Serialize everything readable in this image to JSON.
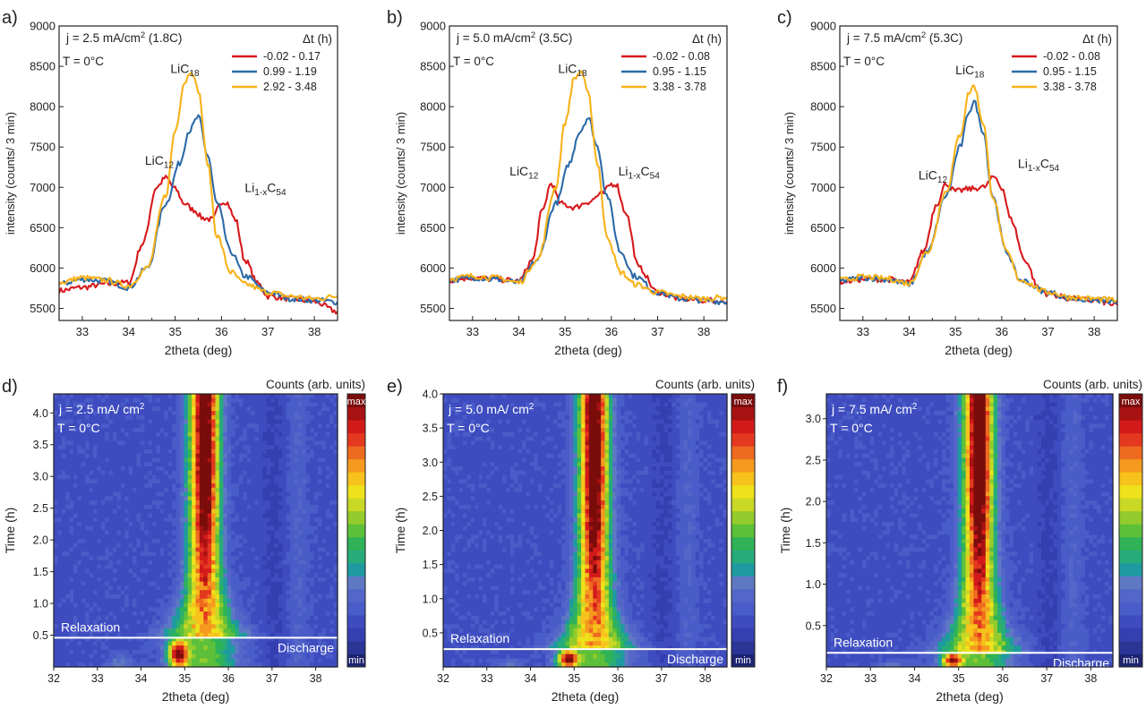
{
  "figure": {
    "panel_letters": [
      "a)",
      "b)",
      "c)",
      "d)",
      "e)",
      "f)"
    ]
  },
  "colors": {
    "red": "#d7191c",
    "blue": "#2c6aa8",
    "orange": "#f7b21a",
    "frame": "#222222",
    "relaxation_line": "#ffffff",
    "heatmap_scale": [
      "#1e2470",
      "#2a3596",
      "#343fb0",
      "#3e4cc0",
      "#4a5cc8",
      "#5566c9",
      "#5e78c4",
      "#1e9aa0",
      "#28ab7a",
      "#2fb356",
      "#5dc03a",
      "#93cc2c",
      "#c8d825",
      "#eee21c",
      "#f7c21c",
      "#f59a1e",
      "#ee6a1f",
      "#e4381f",
      "#d31a1a",
      "#a81212",
      "#7a0c0c"
    ]
  },
  "chart_data": [
    {
      "panel": "a)",
      "type": "line",
      "annotation_lines": [
        "j = 2.5 mA/cm² (1.8C)",
        "T = 0°C"
      ],
      "legend_title": "Δt (h)",
      "legend_position": "top-right",
      "xlabel": "2theta (deg)",
      "ylabel": "intensity (counts/ 3 min)",
      "xlim": [
        32.5,
        38.5
      ],
      "ylim": [
        5350,
        9000
      ],
      "xticks": [
        33,
        34,
        35,
        36,
        37,
        38
      ],
      "yticks": [
        5500,
        6000,
        6500,
        7000,
        7500,
        8000,
        8500,
        9000
      ],
      "peak_labels": [
        {
          "text": "LiC",
          "sub": "12",
          "x": 34.35,
          "y": 7280
        },
        {
          "text": "LiC",
          "sub": "18",
          "x": 34.9,
          "y": 8420
        },
        {
          "text": "Li",
          "sub": "1-x",
          "text2": "C",
          "sub2": "54",
          "x": 36.5,
          "y": 6940
        }
      ],
      "series": [
        {
          "name": "-0.02 - 0.17",
          "color": "red",
          "x": [
            32.5,
            33.0,
            33.5,
            34.0,
            34.3,
            34.6,
            34.8,
            35.0,
            35.2,
            35.4,
            35.6,
            35.8,
            36.0,
            36.1,
            36.3,
            36.5,
            36.8,
            37.0,
            37.5,
            38.0,
            38.5
          ],
          "y": [
            5720,
            5760,
            5800,
            5820,
            6300,
            7000,
            7120,
            6980,
            6800,
            6720,
            6620,
            6600,
            6820,
            6820,
            6600,
            6100,
            5800,
            5650,
            5620,
            5580,
            5460
          ]
        },
        {
          "name": "0.99 - 1.19",
          "color": "blue",
          "x": [
            32.5,
            33.0,
            33.5,
            34.0,
            34.4,
            34.8,
            35.1,
            35.3,
            35.5,
            35.7,
            35.9,
            36.2,
            36.5,
            37.0,
            37.5,
            38.0,
            38.5
          ],
          "y": [
            5800,
            5860,
            5840,
            5760,
            6000,
            6800,
            7300,
            7700,
            7870,
            7400,
            6800,
            6200,
            5900,
            5700,
            5620,
            5600,
            5580
          ]
        },
        {
          "name": "2.92 - 3.48",
          "color": "orange",
          "x": [
            32.5,
            33.0,
            33.5,
            34.0,
            34.4,
            34.8,
            35.0,
            35.2,
            35.35,
            35.5,
            35.7,
            35.9,
            36.2,
            36.5,
            37.0,
            37.5,
            38.0,
            38.5
          ],
          "y": [
            5820,
            5880,
            5850,
            5780,
            6000,
            6900,
            7700,
            8300,
            8450,
            8200,
            7300,
            6400,
            5950,
            5800,
            5700,
            5650,
            5620,
            5650
          ]
        }
      ]
    },
    {
      "panel": "b)",
      "type": "line",
      "annotation_lines": [
        "j = 5.0 mA/cm² (3.5C)",
        "T = 0°C"
      ],
      "legend_title": "Δt (h)",
      "legend_position": "top-right",
      "xlabel": "2theta (deg)",
      "ylabel": "intensity (counts/ 3 min)",
      "xlim": [
        32.5,
        38.5
      ],
      "ylim": [
        5350,
        9000
      ],
      "xticks": [
        33,
        34,
        35,
        36,
        37,
        38
      ],
      "yticks": [
        5500,
        6000,
        6500,
        7000,
        7500,
        8000,
        8500,
        9000
      ],
      "peak_labels": [
        {
          "text": "LiC",
          "sub": "12",
          "x": 33.8,
          "y": 7150
        },
        {
          "text": "LiC",
          "sub": "18",
          "x": 34.85,
          "y": 8420
        },
        {
          "text": "Li",
          "sub": "1-x",
          "text2": "C",
          "sub2": "54",
          "x": 36.15,
          "y": 7150
        }
      ],
      "series": [
        {
          "name": "-0.02 - 0.08",
          "color": "red",
          "x": [
            32.5,
            33.0,
            33.5,
            34.0,
            34.3,
            34.5,
            34.7,
            34.9,
            35.2,
            35.5,
            35.8,
            36.0,
            36.1,
            36.3,
            36.6,
            37.0,
            37.5,
            38.0,
            38.5
          ],
          "y": [
            5850,
            5880,
            5860,
            5840,
            6100,
            6700,
            7050,
            6800,
            6750,
            6820,
            6920,
            7040,
            7040,
            6700,
            6000,
            5700,
            5620,
            5600,
            5580
          ]
        },
        {
          "name": "0.95 - 1.15",
          "color": "blue",
          "x": [
            32.5,
            33.0,
            33.5,
            34.0,
            34.4,
            34.8,
            35.1,
            35.3,
            35.5,
            35.7,
            35.9,
            36.2,
            36.5,
            37.0,
            37.5,
            38.0,
            38.5
          ],
          "y": [
            5850,
            5880,
            5860,
            5820,
            6100,
            6800,
            7300,
            7680,
            7860,
            7500,
            6900,
            6200,
            5900,
            5700,
            5620,
            5600,
            5580
          ]
        },
        {
          "name": "3.38 - 3.78",
          "color": "orange",
          "x": [
            32.5,
            33.0,
            33.5,
            34.0,
            34.4,
            34.8,
            35.0,
            35.2,
            35.35,
            35.5,
            35.7,
            35.9,
            36.2,
            36.5,
            37.0,
            37.5,
            38.0,
            38.5
          ],
          "y": [
            5870,
            5900,
            5880,
            5820,
            6100,
            7000,
            7800,
            8350,
            8440,
            8150,
            7300,
            6400,
            5950,
            5800,
            5700,
            5650,
            5620,
            5640
          ]
        }
      ]
    },
    {
      "panel": "c)",
      "type": "line",
      "annotation_lines": [
        "j = 7.5 mA/cm² (5.3C)",
        "T = 0°C"
      ],
      "legend_title": "Δt (h)",
      "legend_position": "top-right",
      "xlabel": "2theta (deg)",
      "ylabel": "intensity (counts/ 3 min)",
      "xlim": [
        32.5,
        38.5
      ],
      "ylim": [
        5350,
        9000
      ],
      "xticks": [
        33,
        34,
        35,
        36,
        37,
        38
      ],
      "yticks": [
        5500,
        6000,
        6500,
        7000,
        7500,
        8000,
        8500,
        9000
      ],
      "peak_labels": [
        {
          "text": "LiC",
          "sub": "12",
          "x": 34.2,
          "y": 7100
        },
        {
          "text": "LiC",
          "sub": "18",
          "x": 35.0,
          "y": 8400
        },
        {
          "text": "Li",
          "sub": "1-x",
          "text2": "C",
          "sub2": "54",
          "x": 36.35,
          "y": 7240
        }
      ],
      "series": [
        {
          "name": "-0.02 - 0.08",
          "color": "red",
          "x": [
            32.5,
            33.0,
            33.5,
            34.0,
            34.3,
            34.6,
            34.8,
            35.0,
            35.3,
            35.6,
            35.85,
            36.0,
            36.2,
            36.5,
            36.8,
            37.0,
            37.5,
            38.0,
            38.5
          ],
          "y": [
            5830,
            5860,
            5860,
            5820,
            6200,
            6800,
            7050,
            6950,
            6980,
            7000,
            7130,
            7000,
            6600,
            6100,
            5750,
            5680,
            5620,
            5600,
            5540
          ]
        },
        {
          "name": "0.95 - 1.15",
          "color": "blue",
          "x": [
            32.5,
            33.0,
            33.5,
            34.0,
            34.4,
            34.8,
            35.1,
            35.3,
            35.4,
            35.6,
            35.8,
            36.1,
            36.4,
            37.0,
            37.5,
            38.0,
            38.5
          ],
          "y": [
            5840,
            5880,
            5860,
            5800,
            6200,
            6900,
            7500,
            7950,
            8060,
            7700,
            6900,
            6200,
            5850,
            5700,
            5620,
            5600,
            5580
          ]
        },
        {
          "name": "3.38 - 3.78",
          "color": "orange",
          "x": [
            32.5,
            33.0,
            33.5,
            34.0,
            34.4,
            34.8,
            35.1,
            35.3,
            35.4,
            35.6,
            35.8,
            36.1,
            36.4,
            37.0,
            37.5,
            38.0,
            38.5
          ],
          "y": [
            5850,
            5890,
            5870,
            5810,
            6200,
            6950,
            7650,
            8180,
            8260,
            7800,
            6900,
            6200,
            5850,
            5700,
            5640,
            5620,
            5600
          ]
        }
      ]
    },
    {
      "panel": "d)",
      "type": "heatmap",
      "annotation_lines": [
        "j = 2.5 mA/ cm²",
        "T = 0°C"
      ],
      "colorbar_title": "Counts (arb. units)",
      "colorbar_labels": {
        "top": "max",
        "bottom": "min"
      },
      "xlabel": "2theta (deg)",
      "ylabel": "Time (h)",
      "xlim": [
        32,
        38.5
      ],
      "ylim": [
        0,
        4.3
      ],
      "xticks": [
        32,
        33,
        34,
        35,
        36,
        37,
        38
      ],
      "yticks": [
        0.5,
        1.0,
        1.5,
        2.0,
        2.5,
        3.0,
        3.5,
        4.0
      ],
      "ytick_labels": [
        "0.5",
        "1.0",
        "1.5",
        "2.0",
        "2.5",
        "3.0",
        "3.5",
        "4.0"
      ],
      "relaxation_time": 0.46,
      "region_labels": {
        "above": "Relaxation",
        "below": "Discharge"
      },
      "peak_center": 35.45,
      "hotspot_2theta": 34.85,
      "weak_band_2theta": 37.6
    },
    {
      "panel": "e)",
      "type": "heatmap",
      "annotation_lines": [
        "j = 5.0 mA/ cm²",
        "T = 0°C"
      ],
      "colorbar_title": "Counts (arb. units)",
      "colorbar_labels": {
        "top": "max",
        "bottom": "min"
      },
      "xlabel": "2theta (deg)",
      "ylabel": "Time (h)",
      "xlim": [
        32,
        38.5
      ],
      "ylim": [
        0,
        4.0
      ],
      "xticks": [
        32,
        33,
        34,
        35,
        36,
        37,
        38
      ],
      "yticks": [
        0.5,
        1.0,
        1.5,
        2.0,
        2.5,
        3.0,
        3.5,
        4.0
      ],
      "ytick_labels": [
        "0.5",
        "1.0",
        "1.5",
        "2.0",
        "2.5",
        "3.0",
        "3.5",
        "4.0"
      ],
      "relaxation_time": 0.26,
      "region_labels": {
        "above": "Relaxation",
        "below": "Discharge"
      },
      "peak_center": 35.45,
      "hotspot_2theta": 34.85,
      "weak_band_2theta": 37.6
    },
    {
      "panel": "f)",
      "type": "heatmap",
      "annotation_lines": [
        "j = 7.5 mA/ cm²",
        "T = 0°C"
      ],
      "colorbar_title": "Counts (arb. units)",
      "colorbar_labels": {
        "top": "max",
        "bottom": "min"
      },
      "xlabel": "2theta (deg)",
      "ylabel": "Time (h)",
      "xlim": [
        32,
        38.5
      ],
      "ylim": [
        0,
        3.3
      ],
      "xticks": [
        32,
        33,
        34,
        35,
        36,
        37,
        38
      ],
      "yticks": [
        0.5,
        1.0,
        1.5,
        2.0,
        2.5,
        3.0
      ],
      "ytick_labels": [
        "0.5",
        "1.0",
        "1.5",
        "2.0",
        "2.5",
        "3.0"
      ],
      "relaxation_time": 0.17,
      "region_labels": {
        "above": "Relaxation",
        "below": "Discharge"
      },
      "peak_center": 35.45,
      "hotspot_2theta": 34.85,
      "weak_band_2theta": 37.6
    }
  ]
}
